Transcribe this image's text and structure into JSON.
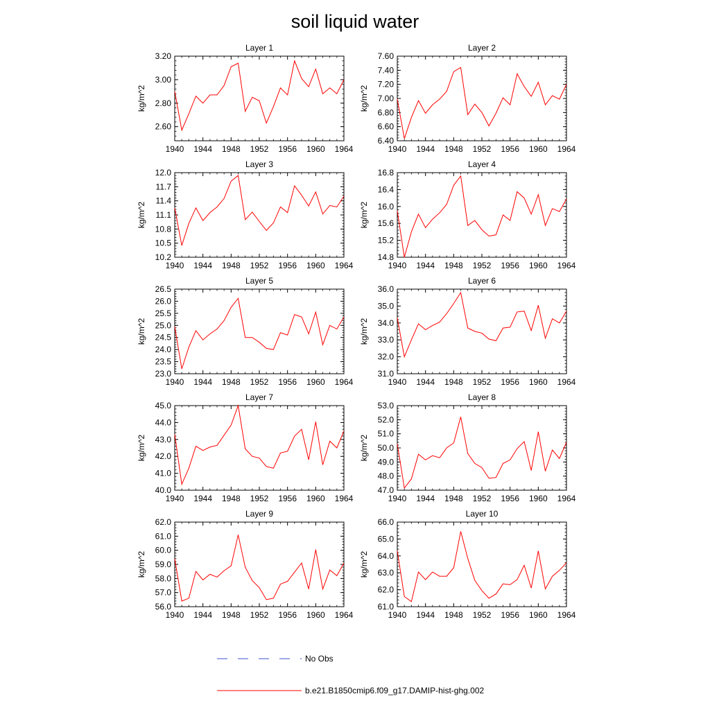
{
  "title": "soil liquid water",
  "legend": [
    {
      "label": "No Obs",
      "color": "#3b4fd0",
      "style": "dashed"
    },
    {
      "label": "b.e21.B1850cmip6.f09_g17.DAMIP-hist-ghg.002",
      "color": "#ff0000",
      "style": "solid"
    }
  ],
  "chart_data": [
    {
      "type": "line",
      "title": "Layer 1",
      "xlabel": "",
      "ylabel": "kg/m^2",
      "xlim": [
        1940,
        1964
      ],
      "xticks": [
        "1940",
        "1944",
        "1948",
        "1952",
        "1956",
        "1960",
        "1964"
      ],
      "ylim": [
        2.48,
        3.2
      ],
      "yticks": [
        "2.60",
        "2.80",
        "3.00",
        "3.20"
      ],
      "x": [
        1940,
        1941,
        1942,
        1943,
        1944,
        1945,
        1946,
        1947,
        1948,
        1949,
        1950,
        1951,
        1952,
        1953,
        1954,
        1955,
        1956,
        1957,
        1958,
        1959,
        1960,
        1961,
        1962,
        1963,
        1964
      ],
      "series": [
        {
          "color": "#ff0000",
          "values": [
            2.9,
            2.57,
            2.71,
            2.86,
            2.8,
            2.87,
            2.87,
            2.95,
            3.11,
            3.14,
            2.73,
            2.85,
            2.82,
            2.63,
            2.77,
            2.93,
            2.87,
            3.16,
            3.01,
            2.94,
            3.09,
            2.88,
            2.93,
            2.88,
            3.0
          ]
        }
      ]
    },
    {
      "type": "line",
      "title": "Layer 2",
      "xlabel": "",
      "ylabel": "kg/m^2",
      "xlim": [
        1940,
        1964
      ],
      "xticks": [
        "1940",
        "1944",
        "1948",
        "1952",
        "1956",
        "1960",
        "1964"
      ],
      "ylim": [
        6.4,
        7.6
      ],
      "yticks": [
        "6.40",
        "6.60",
        "6.80",
        "7.00",
        "7.20",
        "7.40",
        "7.60"
      ],
      "x": [
        1940,
        1941,
        1942,
        1943,
        1944,
        1945,
        1946,
        1947,
        1948,
        1949,
        1950,
        1951,
        1952,
        1953,
        1954,
        1955,
        1956,
        1957,
        1958,
        1959,
        1960,
        1961,
        1962,
        1963,
        1964
      ],
      "series": [
        {
          "color": "#ff0000",
          "values": [
            6.99,
            6.43,
            6.73,
            6.97,
            6.79,
            6.91,
            6.99,
            7.1,
            7.38,
            7.44,
            6.77,
            6.92,
            6.8,
            6.61,
            6.79,
            7.01,
            6.91,
            7.35,
            7.17,
            7.03,
            7.23,
            6.91,
            7.04,
            6.99,
            7.2
          ]
        }
      ]
    },
    {
      "type": "line",
      "title": "Layer 3",
      "xlabel": "",
      "ylabel": "kg/m^2",
      "xlim": [
        1940,
        1964
      ],
      "xticks": [
        "1940",
        "1944",
        "1948",
        "1952",
        "1956",
        "1960",
        "1964"
      ],
      "ylim": [
        10.2,
        12.0
      ],
      "yticks": [
        "10.2",
        "10.5",
        "10.8",
        "11.1",
        "11.4",
        "11.7",
        "12.0"
      ],
      "x": [
        1940,
        1941,
        1942,
        1943,
        1944,
        1945,
        1946,
        1947,
        1948,
        1949,
        1950,
        1951,
        1952,
        1953,
        1954,
        1955,
        1956,
        1957,
        1958,
        1959,
        1960,
        1961,
        1962,
        1963,
        1964
      ],
      "series": [
        {
          "color": "#ff0000",
          "values": [
            11.25,
            10.45,
            10.92,
            11.25,
            10.98,
            11.15,
            11.27,
            11.45,
            11.82,
            11.94,
            11.0,
            11.16,
            10.96,
            10.77,
            10.93,
            11.27,
            11.15,
            11.72,
            11.52,
            11.29,
            11.59,
            11.12,
            11.3,
            11.27,
            11.5
          ]
        }
      ]
    },
    {
      "type": "line",
      "title": "Layer 4",
      "xlabel": "",
      "ylabel": "kg/m^2",
      "xlim": [
        1940,
        1964
      ],
      "xticks": [
        "1940",
        "1944",
        "1948",
        "1952",
        "1956",
        "1960",
        "1964"
      ],
      "ylim": [
        14.8,
        16.8
      ],
      "yticks": [
        "14.8",
        "15.2",
        "15.6",
        "16.0",
        "16.4",
        "16.8"
      ],
      "x": [
        1940,
        1941,
        1942,
        1943,
        1944,
        1945,
        1946,
        1947,
        1948,
        1949,
        1950,
        1951,
        1952,
        1953,
        1954,
        1955,
        1956,
        1957,
        1958,
        1959,
        1960,
        1961,
        1962,
        1963,
        1964
      ],
      "series": [
        {
          "color": "#ff0000",
          "values": [
            15.9,
            14.8,
            15.4,
            15.82,
            15.5,
            15.7,
            15.85,
            16.05,
            16.5,
            16.72,
            15.55,
            15.67,
            15.45,
            15.3,
            15.33,
            15.8,
            15.67,
            16.35,
            16.2,
            15.82,
            16.28,
            15.55,
            15.95,
            15.88,
            16.18
          ]
        }
      ]
    },
    {
      "type": "line",
      "title": "Layer 5",
      "xlabel": "",
      "ylabel": "kg/m^2",
      "xlim": [
        1940,
        1964
      ],
      "xticks": [
        "1940",
        "1944",
        "1948",
        "1952",
        "1956",
        "1960",
        "1964"
      ],
      "ylim": [
        23.0,
        26.5
      ],
      "yticks": [
        "23.0",
        "23.5",
        "24.0",
        "24.5",
        "25.0",
        "25.5",
        "26.0",
        "26.5"
      ],
      "x": [
        1940,
        1941,
        1942,
        1943,
        1944,
        1945,
        1946,
        1947,
        1948,
        1949,
        1950,
        1951,
        1952,
        1953,
        1954,
        1955,
        1956,
        1957,
        1958,
        1959,
        1960,
        1961,
        1962,
        1963,
        1964
      ],
      "series": [
        {
          "color": "#ff0000",
          "values": [
            24.95,
            23.2,
            24.1,
            24.78,
            24.4,
            24.65,
            24.85,
            25.2,
            25.75,
            26.12,
            24.5,
            24.5,
            24.3,
            24.05,
            24.0,
            24.7,
            24.6,
            25.45,
            25.35,
            24.65,
            25.55,
            24.2,
            25.0,
            24.85,
            25.35
          ]
        }
      ]
    },
    {
      "type": "line",
      "title": "Layer 6",
      "xlabel": "",
      "ylabel": "kg/m^2",
      "xlim": [
        1940,
        1964
      ],
      "xticks": [
        "1940",
        "1944",
        "1948",
        "1952",
        "1956",
        "1960",
        "1964"
      ],
      "ylim": [
        31.0,
        36.0
      ],
      "yticks": [
        "31.0",
        "32.0",
        "33.0",
        "34.0",
        "35.0",
        "36.0"
      ],
      "x": [
        1940,
        1941,
        1942,
        1943,
        1944,
        1945,
        1946,
        1947,
        1948,
        1949,
        1950,
        1951,
        1952,
        1953,
        1954,
        1955,
        1956,
        1957,
        1958,
        1959,
        1960,
        1961,
        1962,
        1963,
        1964
      ],
      "series": [
        {
          "color": "#ff0000",
          "values": [
            34.3,
            32.0,
            33.0,
            33.95,
            33.6,
            33.85,
            34.05,
            34.55,
            35.15,
            35.8,
            33.7,
            33.5,
            33.4,
            33.05,
            32.95,
            33.7,
            33.75,
            34.65,
            34.7,
            33.55,
            35.05,
            33.1,
            34.25,
            34.0,
            34.7
          ]
        }
      ]
    },
    {
      "type": "line",
      "title": "Layer 7",
      "xlabel": "",
      "ylabel": "kg/m^2",
      "xlim": [
        1940,
        1964
      ],
      "xticks": [
        "1940",
        "1944",
        "1948",
        "1952",
        "1956",
        "1960",
        "1964"
      ],
      "ylim": [
        40.0,
        45.0
      ],
      "yticks": [
        "40.0",
        "41.0",
        "42.0",
        "43.0",
        "44.0",
        "45.0"
      ],
      "x": [
        1940,
        1941,
        1942,
        1943,
        1944,
        1945,
        1946,
        1947,
        1948,
        1949,
        1950,
        1951,
        1952,
        1953,
        1954,
        1955,
        1956,
        1957,
        1958,
        1959,
        1960,
        1961,
        1962,
        1963,
        1964
      ],
      "series": [
        {
          "color": "#ff0000",
          "values": [
            43.3,
            40.35,
            41.3,
            42.6,
            42.35,
            42.55,
            42.65,
            43.25,
            43.85,
            45.0,
            42.45,
            42.0,
            41.9,
            41.4,
            41.3,
            42.2,
            42.3,
            43.2,
            43.6,
            41.8,
            44.05,
            41.5,
            42.9,
            42.5,
            43.5
          ]
        }
      ]
    },
    {
      "type": "line",
      "title": "Layer 8",
      "xlabel": "",
      "ylabel": "kg/m^2",
      "xlim": [
        1940,
        1964
      ],
      "xticks": [
        "1940",
        "1944",
        "1948",
        "1952",
        "1956",
        "1960",
        "1964"
      ],
      "ylim": [
        47.0,
        53.0
      ],
      "yticks": [
        "47.0",
        "48.0",
        "49.0",
        "50.0",
        "51.0",
        "52.0",
        "53.0"
      ],
      "x": [
        1940,
        1941,
        1942,
        1943,
        1944,
        1945,
        1946,
        1947,
        1948,
        1949,
        1950,
        1951,
        1952,
        1953,
        1954,
        1955,
        1956,
        1957,
        1958,
        1959,
        1960,
        1961,
        1962,
        1963,
        1964
      ],
      "series": [
        {
          "color": "#ff0000",
          "values": [
            50.3,
            47.15,
            47.8,
            49.55,
            49.15,
            49.45,
            49.3,
            50.0,
            50.35,
            52.2,
            49.6,
            48.9,
            48.6,
            47.85,
            47.9,
            48.9,
            49.15,
            49.95,
            50.45,
            48.4,
            51.15,
            48.35,
            49.85,
            49.25,
            50.4
          ]
        }
      ]
    },
    {
      "type": "line",
      "title": "Layer 9",
      "xlabel": "",
      "ylabel": "kg/m^2",
      "xlim": [
        1940,
        1964
      ],
      "xticks": [
        "1940",
        "1944",
        "1948",
        "1952",
        "1956",
        "1960",
        "1964"
      ],
      "ylim": [
        56.0,
        62.0
      ],
      "yticks": [
        "56.0",
        "57.0",
        "58.0",
        "59.0",
        "60.0",
        "61.0",
        "62.0"
      ],
      "x": [
        1940,
        1941,
        1942,
        1943,
        1944,
        1945,
        1946,
        1947,
        1948,
        1949,
        1950,
        1951,
        1952,
        1953,
        1954,
        1955,
        1956,
        1957,
        1958,
        1959,
        1960,
        1961,
        1962,
        1963,
        1964
      ],
      "series": [
        {
          "color": "#ff0000",
          "values": [
            59.4,
            56.4,
            56.6,
            58.5,
            57.9,
            58.3,
            58.1,
            58.55,
            58.9,
            61.1,
            58.8,
            57.85,
            57.35,
            56.5,
            56.6,
            57.6,
            57.8,
            58.45,
            59.1,
            57.25,
            60.05,
            57.25,
            58.6,
            58.2,
            59.1
          ]
        }
      ]
    },
    {
      "type": "line",
      "title": "Layer 10",
      "xlabel": "",
      "ylabel": "kg/m^2",
      "xlim": [
        1940,
        1964
      ],
      "xticks": [
        "1940",
        "1944",
        "1948",
        "1952",
        "1956",
        "1960",
        "1964"
      ],
      "ylim": [
        61.0,
        66.0
      ],
      "yticks": [
        "61.0",
        "62.0",
        "63.0",
        "64.0",
        "65.0",
        "66.0"
      ],
      "x": [
        1940,
        1941,
        1942,
        1943,
        1944,
        1945,
        1946,
        1947,
        1948,
        1949,
        1950,
        1951,
        1952,
        1953,
        1954,
        1955,
        1956,
        1957,
        1958,
        1959,
        1960,
        1961,
        1962,
        1963,
        1964
      ],
      "series": [
        {
          "color": "#ff0000",
          "values": [
            64.3,
            61.6,
            61.3,
            63.05,
            62.6,
            63.05,
            62.8,
            62.8,
            63.3,
            65.45,
            63.85,
            62.55,
            61.95,
            61.5,
            61.75,
            62.35,
            62.3,
            62.6,
            63.45,
            62.1,
            64.3,
            62.05,
            62.8,
            63.15,
            63.6
          ]
        }
      ]
    }
  ]
}
